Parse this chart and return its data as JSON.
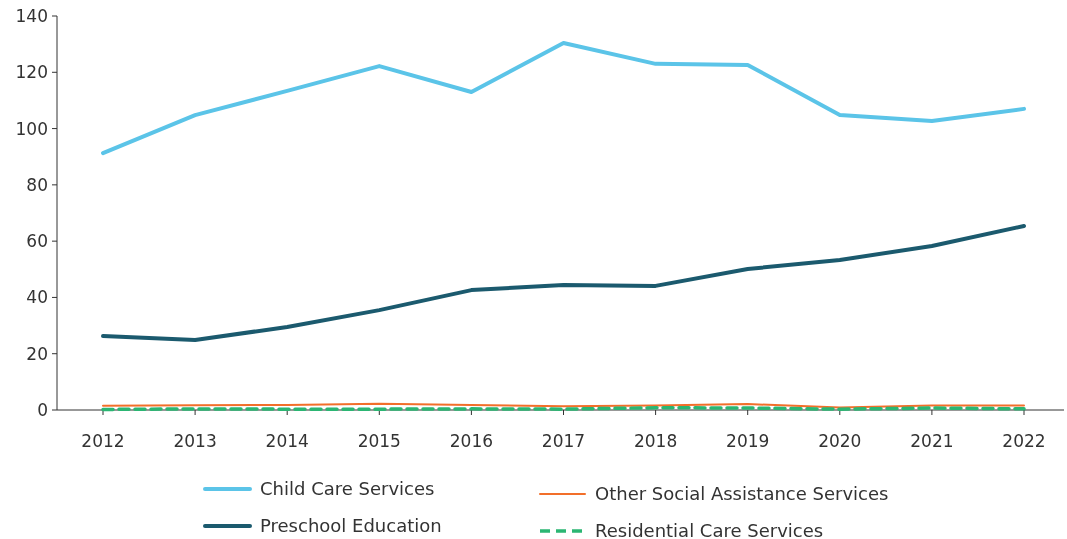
{
  "chart_data": {
    "type": "line",
    "categories": [
      "2012",
      "2013",
      "2014",
      "2015",
      "2016",
      "2017",
      "2018",
      "2019",
      "2020",
      "2021",
      "2022"
    ],
    "series": [
      {
        "name": "Child Care Services",
        "color": "#5bc4e8",
        "values": [
          91.3,
          104.8,
          113.4,
          122.2,
          113,
          130.4,
          123,
          122.6,
          104.8,
          102.7,
          107
        ]
      },
      {
        "name": "Preschool Education",
        "color": "#1b5a6e",
        "values": [
          26.3,
          24.9,
          29.5,
          35.5,
          42.6,
          44.4,
          44.1,
          50.1,
          53.3,
          58.3,
          65.4
        ]
      },
      {
        "name": "Other Social Assistance Services",
        "color": "#f26f2a",
        "values": [
          1.5,
          1.7,
          1.8,
          2.2,
          1.8,
          1.3,
          1.6,
          2.1,
          0.9,
          1.6,
          1.6
        ]
      },
      {
        "name": "Residential Care Services",
        "color": "#2bb673",
        "line_style": "dashed",
        "values": [
          0.2,
          0.4,
          0.3,
          0.3,
          0.4,
          0.3,
          0.8,
          0.7,
          0.3,
          0.7,
          0.4
        ]
      }
    ],
    "ylim": [
      0,
      140
    ],
    "yticks": [
      0,
      20,
      40,
      60,
      80,
      100,
      120,
      140
    ],
    "grid": false,
    "legend": "bottom",
    "marker": "none"
  }
}
